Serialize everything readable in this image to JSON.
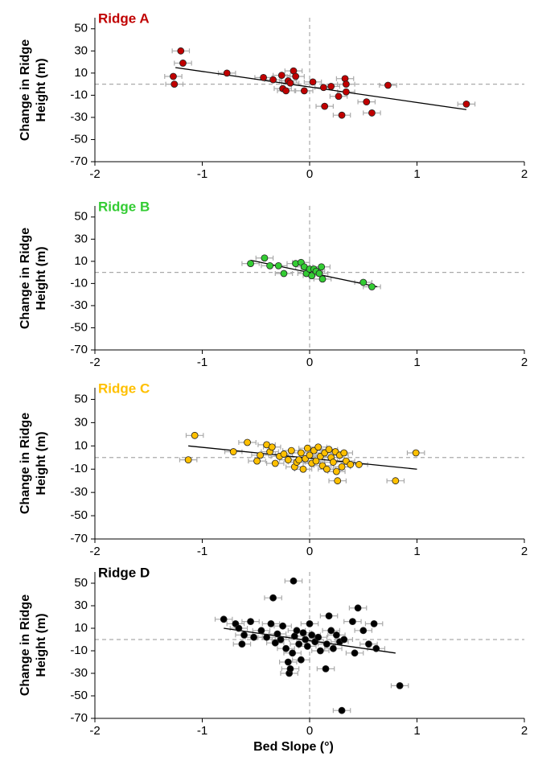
{
  "chart_data": [
    {
      "type": "scatter",
      "title": "Ridge A",
      "y_label": "Change in Ridge Height (m)",
      "color": "#c00000",
      "x": [
        -1.2,
        -1.18,
        -1.27,
        -1.26,
        -0.77,
        -0.43,
        -0.34,
        -0.26,
        -0.25,
        -0.22,
        -0.2,
        -0.18,
        -0.15,
        -0.13,
        -0.05,
        0.03,
        0.13,
        0.14,
        0.2,
        0.27,
        0.3,
        0.33,
        0.34,
        0.34,
        0.53,
        0.58,
        0.73,
        1.46
      ],
      "values": [
        30,
        19,
        7,
        0,
        10,
        6,
        4,
        8,
        -4,
        -6,
        3,
        1,
        12,
        7,
        -6,
        2,
        -3,
        -20,
        -2,
        -11,
        -28,
        5,
        0,
        -7,
        -16,
        -26,
        -1,
        -18
      ],
      "xerr": 0.08,
      "trendline": {
        "x": [
          -1.25,
          1.46
        ],
        "y": [
          15,
          -23
        ]
      },
      "xlim": [
        -2,
        2
      ],
      "ylim": [
        -70,
        60
      ],
      "xticks": [
        -2,
        -1,
        0,
        1,
        2
      ],
      "yticks": [
        -70,
        -50,
        -30,
        -10,
        10,
        30,
        50
      ]
    },
    {
      "type": "scatter",
      "title": "Ridge B",
      "y_label": "Change in Ridge Height (m)",
      "color": "#33cc33",
      "x": [
        -0.55,
        -0.42,
        -0.37,
        -0.29,
        -0.24,
        -0.13,
        -0.08,
        -0.05,
        -0.03,
        0,
        0.02,
        0.04,
        0.06,
        0.09,
        0.11,
        0.12,
        0.5,
        0.58
      ],
      "values": [
        8,
        13,
        6,
        6,
        -1,
        8,
        9,
        5,
        -1,
        3,
        -3,
        3,
        1,
        -1,
        5,
        -6,
        -9,
        -13
      ],
      "xerr": 0.08,
      "trendline": {
        "x": [
          -0.55,
          0.63
        ],
        "y": [
          11,
          -13
        ]
      },
      "xlim": [
        -2,
        2
      ],
      "ylim": [
        -70,
        60
      ],
      "xticks": [
        -2,
        -1,
        0,
        1,
        2
      ],
      "yticks": [
        -70,
        -50,
        -30,
        -10,
        10,
        30,
        50
      ]
    },
    {
      "type": "scatter",
      "title": "Ridge C",
      "y_label": "Change in Ridge Height (m)",
      "color": "#ffc000",
      "x": [
        -1.07,
        -1.13,
        -0.71,
        -0.58,
        -0.49,
        -0.46,
        -0.4,
        -0.37,
        -0.35,
        -0.32,
        -0.28,
        -0.24,
        -0.2,
        -0.17,
        -0.14,
        -0.12,
        -0.1,
        -0.08,
        -0.06,
        -0.04,
        -0.02,
        0,
        0.02,
        0.04,
        0.06,
        0.08,
        0.1,
        0.12,
        0.14,
        0.16,
        0.18,
        0.2,
        0.22,
        0.24,
        0.25,
        0.26,
        0.28,
        0.3,
        0.32,
        0.34,
        0.38,
        0.46,
        0.8,
        0.99
      ],
      "values": [
        19,
        -2,
        5,
        13,
        -3,
        2,
        11,
        5,
        9,
        -5,
        1,
        3,
        -2,
        6,
        -8,
        -4,
        -2,
        4,
        -10,
        -1,
        8,
        2,
        -5,
        6,
        -3,
        9,
        1,
        -7,
        4,
        -10,
        7,
        0,
        -4,
        5,
        -12,
        -20,
        2,
        -8,
        4,
        -3,
        -6,
        -6,
        -20,
        4
      ],
      "xerr": 0.08,
      "trendline": {
        "x": [
          -1.13,
          1
        ],
        "y": [
          10,
          -10
        ]
      },
      "xlim": [
        -2,
        2
      ],
      "ylim": [
        -70,
        60
      ],
      "xticks": [
        -2,
        -1,
        0,
        1,
        2
      ],
      "yticks": [
        -70,
        -50,
        -30,
        -10,
        10,
        30,
        50
      ]
    },
    {
      "type": "scatter",
      "title": "Ridge D",
      "y_label": "Change in Ridge Height (m)",
      "x_label": "Bed Slope (°)",
      "color": "#000000",
      "x": [
        -0.8,
        -0.69,
        -0.66,
        -0.63,
        -0.61,
        -0.55,
        -0.52,
        -0.45,
        -0.4,
        -0.36,
        -0.34,
        -0.32,
        -0.3,
        -0.27,
        -0.25,
        -0.22,
        -0.2,
        -0.19,
        -0.18,
        -0.16,
        -0.15,
        -0.14,
        -0.12,
        -0.1,
        -0.08,
        -0.06,
        -0.04,
        -0.02,
        0,
        0.02,
        0.05,
        0.08,
        0.1,
        0.15,
        0.16,
        0.18,
        0.2,
        0.22,
        0.25,
        0.28,
        0.3,
        0.32,
        0.4,
        0.42,
        0.45,
        0.5,
        0.55,
        0.6,
        0.62,
        0.84
      ],
      "values": [
        18,
        14,
        10,
        -4,
        4,
        16,
        2,
        8,
        2,
        14,
        37,
        -3,
        5,
        0,
        12,
        -8,
        -20,
        -30,
        -26,
        -12,
        52,
        3,
        8,
        -4,
        -18,
        6,
        0,
        -6,
        14,
        4,
        -2,
        2,
        -10,
        -26,
        -4,
        21,
        8,
        -8,
        4,
        -2,
        -63,
        0,
        16,
        -12,
        28,
        8,
        -4,
        14,
        -8,
        -41
      ],
      "xerr": 0.08,
      "trendline": {
        "x": [
          -0.8,
          0.8
        ],
        "y": [
          10,
          -12
        ]
      },
      "xlim": [
        -2,
        2
      ],
      "ylim": [
        -70,
        60
      ],
      "xticks": [
        -2,
        -1,
        0,
        1,
        2
      ],
      "yticks": [
        -70,
        -50,
        -30,
        -10,
        10,
        30,
        50
      ]
    }
  ]
}
